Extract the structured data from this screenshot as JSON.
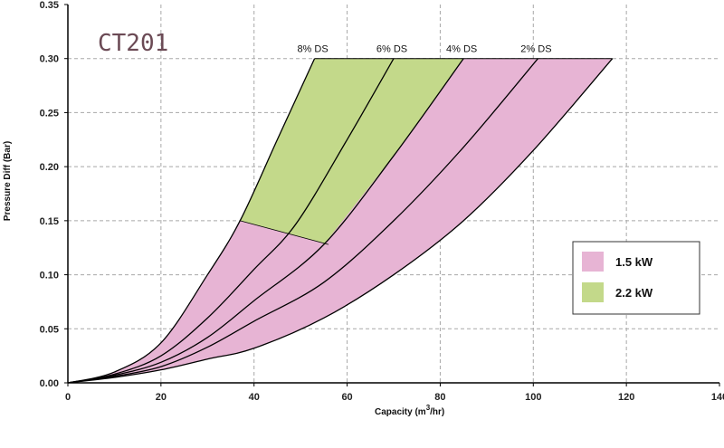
{
  "chart_data": {
    "type": "area",
    "title": "CT201",
    "xlabel": "Capacity (m",
    "xlabel_sup": "3",
    "xlabel_end": "/hr)",
    "ylabel": "Pressure Diff  (Bar)",
    "xlim": [
      0,
      140
    ],
    "ylim": [
      0,
      0.35
    ],
    "x_ticks": [
      "0",
      "20",
      "40",
      "60",
      "80",
      "100",
      "120",
      "140"
    ],
    "y_ticks": [
      "0.00",
      "0.05",
      "0.10",
      "0.15",
      "0.20",
      "0.25",
      "0.30",
      "0.35"
    ],
    "grid": true,
    "legend_position": "right",
    "series": [
      {
        "name": "8% DS",
        "x": [
          0,
          10,
          20,
          30,
          37,
          45,
          53
        ],
        "y": [
          0,
          0.01,
          0.037,
          0.1,
          0.15,
          0.225,
          0.3
        ]
      },
      {
        "name": "6% DS",
        "x": [
          0,
          10,
          20,
          30,
          40,
          49,
          60,
          70
        ],
        "y": [
          0,
          0.008,
          0.025,
          0.06,
          0.105,
          0.147,
          0.225,
          0.3
        ]
      },
      {
        "name": "4% DS",
        "x": [
          0,
          10,
          20,
          30,
          40,
          55,
          70,
          85
        ],
        "y": [
          0,
          0.007,
          0.019,
          0.042,
          0.076,
          0.128,
          0.21,
          0.3
        ]
      },
      {
        "name": "2% DS",
        "x": [
          0,
          10,
          20,
          30,
          40,
          55,
          70,
          85,
          101
        ],
        "y": [
          0,
          0.006,
          0.015,
          0.033,
          0.057,
          0.093,
          0.15,
          0.218,
          0.3
        ]
      },
      {
        "name": "",
        "x": [
          0,
          10,
          20,
          30,
          40,
          55,
          70,
          85,
          100,
          117
        ],
        "y": [
          0,
          0.005,
          0.012,
          0.022,
          0.032,
          0.06,
          0.1,
          0.15,
          0.215,
          0.3
        ]
      }
    ],
    "boundary_2_2kw": {
      "x": [
        37,
        56
      ],
      "y": [
        0.15,
        0.128
      ]
    },
    "legend": [
      {
        "label": "1.5 kW",
        "color": "#e7b4d4"
      },
      {
        "label": "2.2 kW",
        "color": "#c3d98a"
      }
    ],
    "colors": {
      "kw_1_5": "#e7b4d4",
      "kw_2_2": "#c3d98a",
      "curve": "#000000",
      "grid": "#a8a8a8"
    }
  }
}
